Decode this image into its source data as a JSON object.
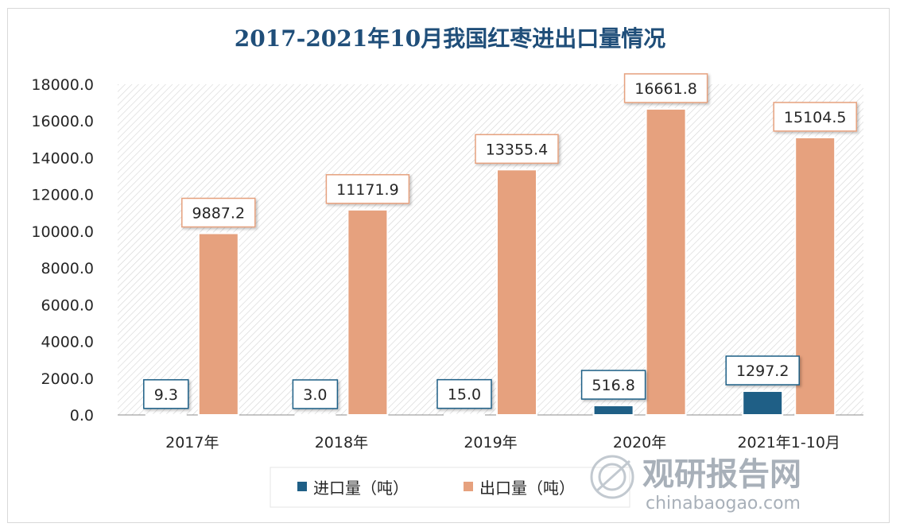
{
  "chart_data": {
    "type": "bar",
    "title": "2017-2021年10月我国红枣进出口量情况",
    "categories": [
      "2017年",
      "2018年",
      "2019年",
      "2020年",
      "2021年1-10月"
    ],
    "series": [
      {
        "name": "进口量（吨）",
        "color": "#1f5f86",
        "values": [
          9.3,
          3.0,
          15.0,
          516.8,
          1297.2
        ],
        "labels": [
          "9.3",
          "3.0",
          "15.0",
          "516.8",
          "1297.2"
        ]
      },
      {
        "name": "出口量（吨）",
        "color": "#e6a17e",
        "values": [
          9887.2,
          11171.9,
          13355.4,
          16661.8,
          15104.5
        ],
        "labels": [
          "9887.2",
          "11171.9",
          "13355.4",
          "16661.8",
          "15104.5"
        ]
      }
    ],
    "ylim": [
      0,
      18000
    ],
    "yticks": [
      0,
      2000,
      4000,
      6000,
      8000,
      10000,
      12000,
      14000,
      16000,
      18000
    ],
    "ytick_labels": [
      "0.0",
      "2000.0",
      "4000.0",
      "6000.0",
      "8000.0",
      "10000.0",
      "12000.0",
      "14000.0",
      "16000.0",
      "18000.0"
    ],
    "grid": false,
    "legend_position": "bottom"
  },
  "watermark": {
    "brand": "观研报告网",
    "url": "chinabaogao.com"
  }
}
